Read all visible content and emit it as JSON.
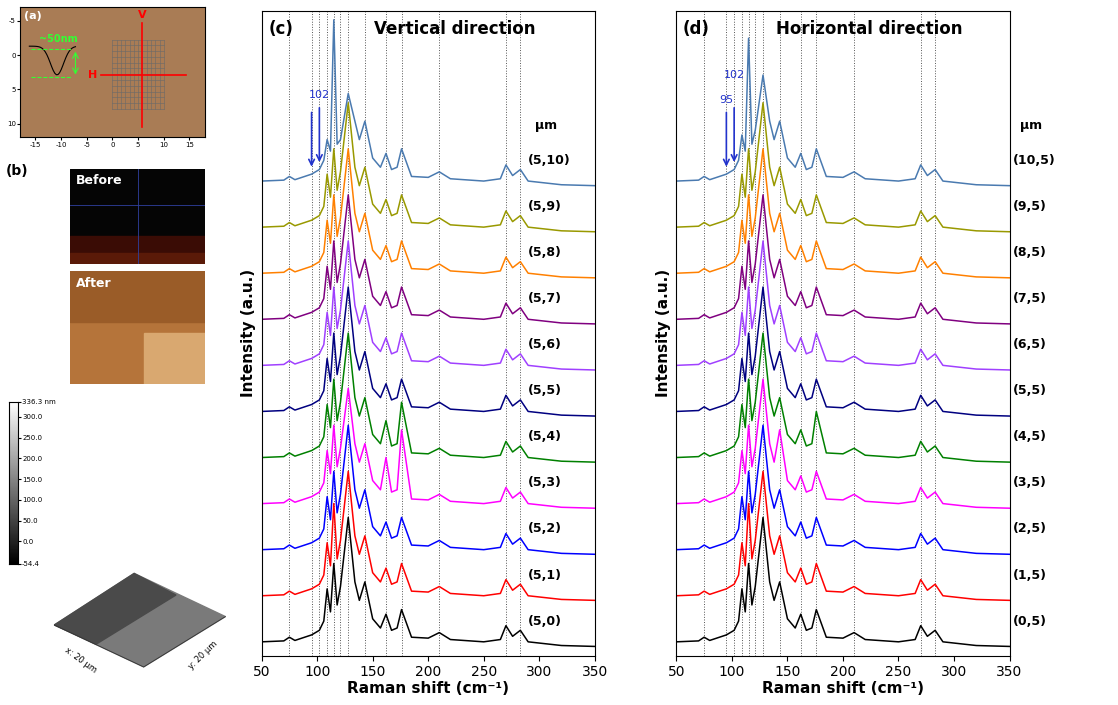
{
  "chart_data": [
    {
      "type": "image",
      "panel": "(a)",
      "xlim": [
        -18,
        18
      ],
      "xticks": [
        -15,
        -10,
        -5,
        0,
        5,
        10,
        15
      ],
      "ylim": [
        12,
        -7
      ],
      "yticks": [
        -5,
        0,
        5,
        10
      ],
      "cross_labels": [
        "V",
        "H"
      ],
      "depth_label": "~50nm"
    },
    {
      "type": "afm",
      "panel": "(b)",
      "images": [
        "Before",
        "After"
      ],
      "scale": {
        "ylim": [
          -54.4,
          336.3
        ],
        "yticks": [
          {
            "value": 336.3,
            "label": "336.3 nm"
          },
          {
            "value": 300,
            "label": "300.0"
          },
          {
            "value": 250,
            "label": "250.0"
          },
          {
            "value": 200,
            "label": "200.0"
          },
          {
            "value": 150,
            "label": "150.0"
          },
          {
            "value": 100,
            "label": "100.0"
          },
          {
            "value": 50,
            "label": "50.0"
          },
          {
            "value": 0,
            "label": "0.0"
          },
          -54.4
        ]
      },
      "surface_labels": [
        "x: 20 µm",
        "y: 20 µm"
      ]
    },
    {
      "type": "line",
      "panel": "(c)",
      "title": "Vertical direction",
      "x_label": "Raman shift (cm⁻¹)",
      "y_label": "Intensity (a.u.)",
      "unit_label": "µm",
      "label_side": "inside",
      "tick_labels": "x",
      "xlim": [
        50,
        350
      ],
      "xticks": [
        50,
        100,
        150,
        200,
        250,
        300,
        350
      ],
      "ylim": [
        0,
        14
      ],
      "vlines": [
        75,
        95,
        102,
        109,
        115,
        121,
        128,
        143,
        162,
        176,
        210,
        270,
        283
      ],
      "arrows": [
        95,
        102
      ],
      "arrow_labels": [
        {
          "text": "102",
          "x": 102
        }
      ],
      "x": [
        50,
        70,
        75,
        80,
        95,
        102,
        106,
        109,
        112,
        115,
        118,
        121,
        128,
        134,
        138,
        143,
        150,
        157,
        162,
        167,
        172,
        176,
        185,
        200,
        210,
        220,
        250,
        265,
        270,
        276,
        283,
        290,
        320,
        350
      ],
      "series": [
        {
          "name": "(5,0)",
          "color": "#000000",
          "values": [
            0.3,
            0.32,
            0.4,
            0.33,
            0.45,
            0.55,
            0.75,
            1.45,
            0.95,
            2.0,
            1.1,
            1.5,
            3.0,
            1.6,
            1.2,
            1.6,
            0.8,
            0.6,
            0.9,
            0.55,
            0.6,
            1.0,
            0.4,
            0.38,
            0.5,
            0.35,
            0.3,
            0.35,
            0.65,
            0.42,
            0.55,
            0.3,
            0.22,
            0.2
          ]
        },
        {
          "name": "(5,1)",
          "color": "#ff0000",
          "values": [
            1.3,
            1.32,
            1.4,
            1.33,
            1.45,
            1.55,
            1.75,
            2.45,
            1.95,
            3.3,
            2.1,
            2.5,
            4.0,
            2.6,
            2.2,
            2.6,
            1.8,
            1.6,
            1.9,
            1.55,
            1.6,
            2.0,
            1.4,
            1.38,
            1.5,
            1.35,
            1.3,
            1.35,
            1.65,
            1.42,
            1.55,
            1.3,
            1.22,
            1.2
          ]
        },
        {
          "name": "(5,2)",
          "color": "#0000ff",
          "values": [
            2.3,
            2.32,
            2.4,
            2.33,
            2.45,
            2.55,
            2.75,
            3.45,
            2.95,
            4.0,
            3.1,
            3.5,
            5.0,
            3.6,
            3.2,
            3.6,
            2.8,
            2.6,
            2.9,
            2.55,
            2.6,
            3.0,
            2.4,
            2.38,
            2.5,
            2.35,
            2.3,
            2.35,
            2.65,
            2.42,
            2.55,
            2.3,
            2.22,
            2.2
          ]
        },
        {
          "name": "(5,3)",
          "color": "#ff00ff",
          "values": [
            3.3,
            3.32,
            3.4,
            3.33,
            3.45,
            3.55,
            3.75,
            4.45,
            3.95,
            5.0,
            4.1,
            4.5,
            5.8,
            4.6,
            4.2,
            4.6,
            3.8,
            3.6,
            4.3,
            3.55,
            3.6,
            4.9,
            3.4,
            3.38,
            3.5,
            3.35,
            3.3,
            3.35,
            3.65,
            3.42,
            3.55,
            3.3,
            3.22,
            3.2
          ]
        },
        {
          "name": "(5,4)",
          "color": "#008000",
          "values": [
            4.3,
            4.32,
            4.4,
            4.33,
            4.45,
            4.55,
            4.75,
            5.45,
            4.95,
            6.0,
            5.1,
            5.5,
            7.0,
            5.6,
            5.2,
            5.6,
            4.8,
            4.6,
            5.1,
            4.55,
            4.6,
            5.5,
            4.4,
            4.38,
            4.5,
            4.35,
            4.3,
            4.35,
            4.65,
            4.42,
            4.55,
            4.3,
            4.22,
            4.2
          ]
        },
        {
          "name": "(5,5)",
          "color": "#000080",
          "values": [
            5.3,
            5.32,
            5.4,
            5.33,
            5.45,
            5.55,
            5.75,
            6.45,
            5.95,
            7.0,
            6.1,
            6.5,
            8.0,
            6.6,
            6.2,
            6.6,
            5.8,
            5.6,
            5.9,
            5.55,
            5.6,
            6.0,
            5.4,
            5.38,
            5.5,
            5.35,
            5.3,
            5.35,
            5.65,
            5.42,
            5.55,
            5.3,
            5.22,
            5.2
          ]
        },
        {
          "name": "(5,6)",
          "color": "#a040ff",
          "values": [
            6.3,
            6.32,
            6.4,
            6.33,
            6.45,
            6.55,
            6.75,
            7.45,
            6.95,
            8.0,
            7.1,
            7.5,
            9.0,
            7.6,
            7.2,
            7.6,
            6.8,
            6.6,
            6.9,
            6.55,
            6.6,
            7.0,
            6.4,
            6.38,
            6.5,
            6.35,
            6.3,
            6.35,
            6.65,
            6.42,
            6.55,
            6.3,
            6.22,
            6.2
          ]
        },
        {
          "name": "(5,7)",
          "color": "#800080",
          "values": [
            7.3,
            7.32,
            7.4,
            7.33,
            7.45,
            7.55,
            7.75,
            8.45,
            7.95,
            9.0,
            8.1,
            8.5,
            10.0,
            8.6,
            8.2,
            8.6,
            7.8,
            7.6,
            7.9,
            7.55,
            7.6,
            8.0,
            7.4,
            7.38,
            7.5,
            7.35,
            7.3,
            7.35,
            7.65,
            7.42,
            7.55,
            7.3,
            7.22,
            7.2
          ]
        },
        {
          "name": "(5,8)",
          "color": "#ff8000",
          "values": [
            8.3,
            8.32,
            8.4,
            8.33,
            8.45,
            8.55,
            8.75,
            9.45,
            8.95,
            10.0,
            9.1,
            9.5,
            11.0,
            9.6,
            9.2,
            9.6,
            8.8,
            8.6,
            8.9,
            8.55,
            8.6,
            9.0,
            8.4,
            8.38,
            8.5,
            8.35,
            8.3,
            8.35,
            8.65,
            8.42,
            8.55,
            8.3,
            8.22,
            8.2
          ]
        },
        {
          "name": "(5,9)",
          "color": "#999900",
          "values": [
            9.3,
            9.32,
            9.4,
            9.33,
            9.45,
            9.55,
            9.75,
            10.45,
            9.95,
            11.0,
            10.1,
            10.5,
            12.0,
            10.6,
            10.2,
            10.6,
            9.8,
            9.6,
            9.9,
            9.55,
            9.6,
            10.0,
            9.4,
            9.38,
            9.5,
            9.35,
            9.3,
            9.35,
            9.65,
            9.42,
            9.55,
            9.3,
            9.22,
            9.2
          ]
        },
        {
          "name": "(5,10)",
          "color": "#4a7ab0",
          "values": [
            10.3,
            10.32,
            10.4,
            10.33,
            10.45,
            10.55,
            10.75,
            11.2,
            10.95,
            13.8,
            11.1,
            11.2,
            12.2,
            11.6,
            11.2,
            11.6,
            10.8,
            10.6,
            10.9,
            10.55,
            10.6,
            11.0,
            10.4,
            10.38,
            10.5,
            10.35,
            10.3,
            10.35,
            10.65,
            10.42,
            10.55,
            10.3,
            10.22,
            10.2
          ]
        }
      ]
    },
    {
      "type": "line",
      "panel": "(d)",
      "title": "Horizontal direction",
      "x_label": "Raman shift (cm⁻¹)",
      "y_label": "Intensity (a.u.)",
      "unit_label": "µm",
      "label_side": "outside",
      "tick_labels": "x",
      "xlim": [
        50,
        350
      ],
      "xticks": [
        50,
        100,
        150,
        200,
        250,
        300,
        350
      ],
      "ylim": [
        0,
        14
      ],
      "vlines": [
        75,
        95,
        102,
        109,
        115,
        121,
        128,
        143,
        162,
        176,
        210,
        270,
        283
      ],
      "arrows": [
        95,
        102
      ],
      "arrow_labels": [
        {
          "text": "102",
          "x": 102
        },
        {
          "text": "95",
          "x": 95
        }
      ],
      "x": [
        50,
        70,
        75,
        80,
        95,
        102,
        106,
        109,
        112,
        115,
        118,
        121,
        128,
        134,
        138,
        143,
        150,
        157,
        162,
        167,
        172,
        176,
        185,
        200,
        210,
        220,
        250,
        265,
        270,
        276,
        283,
        290,
        320,
        350
      ],
      "series": [
        {
          "name": "(0,5)",
          "color": "#000000",
          "values": [
            0.3,
            0.32,
            0.4,
            0.33,
            0.45,
            0.55,
            0.75,
            1.45,
            0.95,
            2.0,
            1.1,
            1.5,
            3.0,
            1.6,
            1.2,
            1.6,
            0.8,
            0.6,
            0.9,
            0.55,
            0.6,
            1.0,
            0.4,
            0.38,
            0.5,
            0.35,
            0.3,
            0.35,
            0.65,
            0.42,
            0.55,
            0.3,
            0.22,
            0.2
          ]
        },
        {
          "name": "(1,5)",
          "color": "#ff0000",
          "values": [
            1.3,
            1.32,
            1.4,
            1.33,
            1.45,
            1.55,
            1.75,
            2.45,
            1.95,
            3.3,
            2.1,
            2.5,
            4.0,
            2.6,
            2.2,
            2.6,
            1.8,
            1.6,
            1.9,
            1.55,
            1.6,
            2.0,
            1.4,
            1.38,
            1.5,
            1.35,
            1.3,
            1.35,
            1.65,
            1.42,
            1.55,
            1.3,
            1.22,
            1.2
          ]
        },
        {
          "name": "(2,5)",
          "color": "#0000ff",
          "values": [
            2.3,
            2.32,
            2.4,
            2.33,
            2.45,
            2.55,
            2.75,
            3.45,
            2.95,
            4.0,
            3.1,
            3.5,
            5.0,
            3.6,
            3.2,
            3.6,
            2.8,
            2.6,
            2.9,
            2.55,
            2.6,
            3.0,
            2.4,
            2.38,
            2.5,
            2.35,
            2.3,
            2.35,
            2.65,
            2.42,
            2.55,
            2.3,
            2.22,
            2.2
          ]
        },
        {
          "name": "(3,5)",
          "color": "#ff00ff",
          "values": [
            3.3,
            3.32,
            3.4,
            3.33,
            3.45,
            3.55,
            3.75,
            4.45,
            3.95,
            5.0,
            4.1,
            4.5,
            6.0,
            4.6,
            4.2,
            4.9,
            3.8,
            3.6,
            3.9,
            3.55,
            3.6,
            4.0,
            3.4,
            3.38,
            3.5,
            3.35,
            3.3,
            3.35,
            3.65,
            3.42,
            3.55,
            3.3,
            3.22,
            3.2
          ]
        },
        {
          "name": "(4,5)",
          "color": "#008000",
          "values": [
            4.3,
            4.32,
            4.4,
            4.33,
            4.45,
            4.55,
            4.75,
            5.45,
            4.95,
            6.0,
            5.1,
            5.5,
            7.0,
            5.6,
            5.2,
            5.6,
            4.8,
            4.6,
            4.9,
            4.55,
            4.6,
            5.3,
            4.4,
            4.38,
            4.5,
            4.35,
            4.3,
            4.35,
            4.65,
            4.42,
            4.55,
            4.3,
            4.22,
            4.2
          ]
        },
        {
          "name": "(5,5)",
          "color": "#000080",
          "values": [
            5.3,
            5.32,
            5.4,
            5.33,
            5.45,
            5.55,
            5.75,
            6.45,
            5.95,
            7.0,
            6.1,
            6.5,
            8.0,
            6.6,
            6.2,
            6.6,
            5.8,
            5.6,
            5.9,
            5.55,
            5.6,
            6.0,
            5.4,
            5.38,
            5.5,
            5.35,
            5.3,
            5.35,
            5.65,
            5.42,
            5.55,
            5.3,
            5.22,
            5.2
          ]
        },
        {
          "name": "(6,5)",
          "color": "#a040ff",
          "values": [
            6.3,
            6.32,
            6.4,
            6.33,
            6.45,
            6.55,
            6.75,
            7.45,
            6.95,
            8.0,
            7.1,
            7.5,
            9.0,
            7.6,
            7.2,
            7.6,
            6.8,
            6.6,
            6.9,
            6.55,
            6.6,
            7.0,
            6.4,
            6.38,
            6.5,
            6.35,
            6.3,
            6.35,
            6.65,
            6.42,
            6.55,
            6.3,
            6.22,
            6.2
          ]
        },
        {
          "name": "(7,5)",
          "color": "#800080",
          "values": [
            7.3,
            7.32,
            7.4,
            7.33,
            7.45,
            7.55,
            7.75,
            8.45,
            7.95,
            9.0,
            8.1,
            8.5,
            10.0,
            8.6,
            8.2,
            8.6,
            7.8,
            7.6,
            7.9,
            7.55,
            7.6,
            8.0,
            7.4,
            7.38,
            7.5,
            7.35,
            7.3,
            7.35,
            7.65,
            7.42,
            7.55,
            7.3,
            7.22,
            7.2
          ]
        },
        {
          "name": "(8,5)",
          "color": "#ff8000",
          "values": [
            8.3,
            8.32,
            8.4,
            8.33,
            8.45,
            8.55,
            8.75,
            9.45,
            8.95,
            10.0,
            9.1,
            9.5,
            11.0,
            9.6,
            9.2,
            9.6,
            8.8,
            8.6,
            8.9,
            8.55,
            8.6,
            9.0,
            8.4,
            8.38,
            8.5,
            8.35,
            8.3,
            8.35,
            8.65,
            8.42,
            8.55,
            8.3,
            8.22,
            8.2
          ]
        },
        {
          "name": "(9,5)",
          "color": "#999900",
          "values": [
            9.3,
            9.32,
            9.4,
            9.33,
            9.45,
            9.55,
            9.75,
            10.45,
            9.95,
            11.0,
            10.1,
            10.5,
            12.0,
            10.6,
            10.2,
            10.6,
            9.8,
            9.6,
            9.9,
            9.55,
            9.6,
            10.0,
            9.4,
            9.38,
            9.5,
            9.35,
            9.3,
            9.35,
            9.65,
            9.42,
            9.55,
            9.3,
            9.22,
            9.2
          ]
        },
        {
          "name": "(10,5)",
          "color": "#4a7ab0",
          "values": [
            10.3,
            10.32,
            10.4,
            10.33,
            10.45,
            10.55,
            10.75,
            11.3,
            10.95,
            13.4,
            11.1,
            11.4,
            12.6,
            11.6,
            11.2,
            11.6,
            10.8,
            10.6,
            10.9,
            10.55,
            10.6,
            11.0,
            10.4,
            10.38,
            10.5,
            10.35,
            10.3,
            10.35,
            10.65,
            10.42,
            10.55,
            10.3,
            10.22,
            10.2
          ]
        }
      ]
    }
  ]
}
